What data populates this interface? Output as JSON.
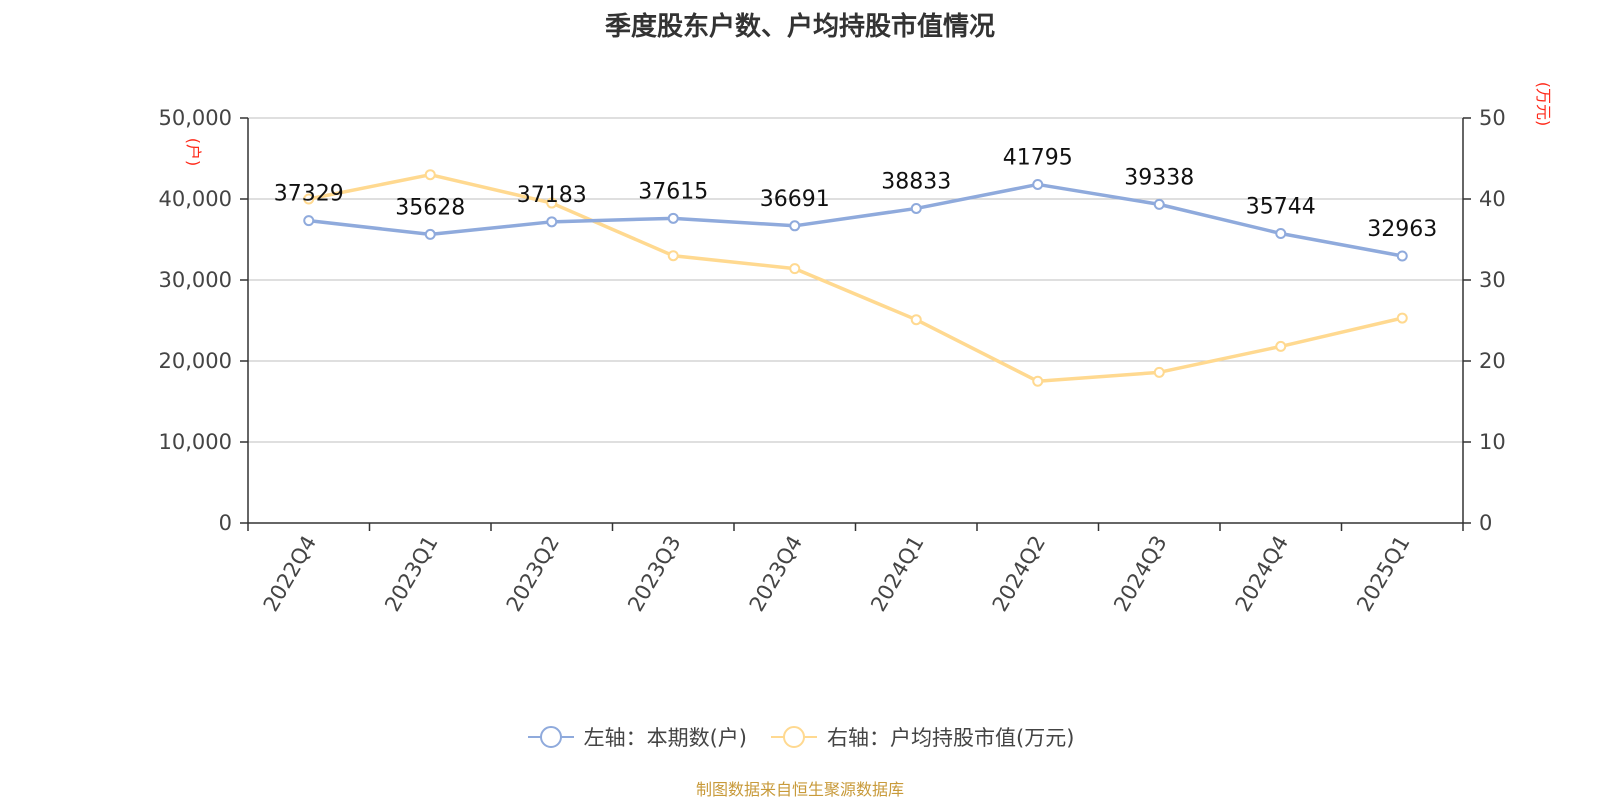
{
  "chart_data": {
    "type": "line",
    "title": "季度股东户数、户均持股市值情况",
    "categories": [
      "2022Q4",
      "2023Q1",
      "2023Q2",
      "2023Q3",
      "2023Q4",
      "2024Q1",
      "2024Q2",
      "2024Q3",
      "2024Q4",
      "2025Q1"
    ],
    "series": [
      {
        "name": "左轴：本期数(户)",
        "axis": "left",
        "color": "#8faadc",
        "values": [
          37329,
          35628,
          37183,
          37615,
          36691,
          38833,
          41795,
          39338,
          35744,
          32963
        ]
      },
      {
        "name": "右轴：户均持股市值(万元)",
        "axis": "right",
        "color": "#ffd990",
        "values": [
          40.0,
          43.0,
          39.5,
          33.0,
          31.4,
          25.1,
          17.5,
          18.6,
          21.8,
          25.3
        ]
      }
    ],
    "left_axis": {
      "unit": "(户)",
      "ylim": [
        0,
        50000
      ],
      "ticks": [
        0,
        10000,
        20000,
        30000,
        40000,
        50000
      ],
      "tick_labels": [
        "0",
        "10,000",
        "20,000",
        "30,000",
        "40,000",
        "50,000"
      ]
    },
    "right_axis": {
      "unit": "(万元)",
      "ylim": [
        0,
        50
      ],
      "ticks": [
        0,
        10,
        20,
        30,
        40,
        50
      ],
      "tick_labels": [
        "0",
        "10",
        "20",
        "30",
        "40",
        "50"
      ]
    },
    "data_labels": [
      "37329",
      "35628",
      "37183",
      "37615",
      "36691",
      "38833",
      "41795",
      "39338",
      "35744",
      "32963"
    ],
    "grid": true,
    "legend_position": "bottom"
  },
  "footer": {
    "source": "制图数据来自恒生聚源数据库"
  }
}
